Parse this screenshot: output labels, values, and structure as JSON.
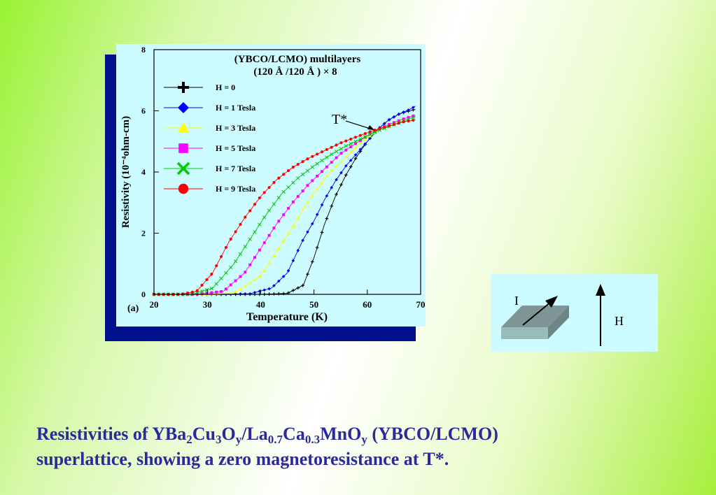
{
  "chart_data": {
    "type": "line",
    "title": "(YBCO/LCMO) multilayers",
    "subtitle": "(120 Å /120 Å ) ×  8",
    "xlabel": "Temperature (K)",
    "ylabel": "Resistivity (10⁻⁴ohm-cm)",
    "panel_label": "(a)",
    "xlim": [
      20,
      70
    ],
    "ylim": [
      0,
      8
    ],
    "xticks": [
      "20",
      "30",
      "40",
      "50",
      "60",
      "70"
    ],
    "yticks": [
      "0",
      "2",
      "4",
      "6",
      "8"
    ],
    "grid": false,
    "legend_position": "top-left",
    "annotation": "T*",
    "series": [
      {
        "name": "H = 0",
        "marker": "plus",
        "color": "#000000",
        "Tc": 52.5,
        "width": 2.2,
        "x": [
          20,
          30,
          40,
          45,
          48,
          50,
          52,
          54,
          56,
          58,
          60,
          62,
          64,
          66,
          68,
          69
        ],
        "y": [
          0,
          0,
          0,
          0.03,
          0.3,
          1.2,
          2.3,
          3.2,
          3.9,
          4.5,
          5.0,
          5.4,
          5.7,
          5.9,
          6.0,
          6.05
        ]
      },
      {
        "name": "H = 1 Tesla",
        "marker": "diamond",
        "color": "#0000ff",
        "Tc": 48.5,
        "width": 3.0,
        "x": [
          20,
          30,
          38,
          42,
          45,
          48,
          50,
          52,
          54,
          56,
          58,
          60,
          62,
          64,
          66,
          68,
          69
        ],
        "y": [
          0,
          0,
          0.02,
          0.2,
          0.7,
          1.8,
          2.4,
          3.1,
          3.7,
          4.2,
          4.6,
          5.0,
          5.4,
          5.7,
          5.9,
          6.05,
          6.15
        ]
      },
      {
        "name": "H = 3 Tesla",
        "marker": "triangle",
        "color": "#ffff00",
        "Tc": 45.5,
        "width": 3.6,
        "x": [
          20,
          30,
          35,
          40,
          43,
          46,
          48,
          50,
          53,
          56,
          59,
          62,
          65,
          68,
          69
        ],
        "y": [
          0,
          0,
          0.05,
          0.6,
          1.4,
          2.2,
          2.8,
          3.3,
          4.0,
          4.5,
          5.0,
          5.35,
          5.6,
          5.8,
          5.9
        ]
      },
      {
        "name": "H = 5 Tesla",
        "marker": "square",
        "color": "#ff00ff",
        "Tc": 43.5,
        "width": 4.0,
        "x": [
          20,
          28,
          33,
          37,
          40,
          43,
          46,
          49,
          52,
          55,
          58,
          61,
          64,
          67,
          69
        ],
        "y": [
          0,
          0,
          0.1,
          0.7,
          1.5,
          2.3,
          3.0,
          3.6,
          4.1,
          4.6,
          4.95,
          5.3,
          5.55,
          5.75,
          5.85
        ]
      },
      {
        "name": "H = 7 Tesla",
        "marker": "x",
        "color": "#00cc00",
        "Tc": 41.5,
        "width": 4.4,
        "x": [
          20,
          27,
          31,
          35,
          38,
          41,
          44,
          47,
          50,
          53,
          56,
          59,
          62,
          65,
          68,
          69
        ],
        "y": [
          0,
          0,
          0.2,
          1.0,
          1.8,
          2.6,
          3.3,
          3.8,
          4.2,
          4.55,
          4.85,
          5.1,
          5.35,
          5.55,
          5.75,
          5.8
        ]
      },
      {
        "name": "H = 9 Tesla",
        "marker": "circle",
        "color": "#ff0000",
        "Tc": 38.5,
        "width": 5.0,
        "x": [
          20,
          25,
          28,
          31,
          34,
          37,
          40,
          43,
          46,
          49,
          52,
          55,
          58,
          61,
          64,
          67,
          69
        ],
        "y": [
          0,
          0,
          0.1,
          0.7,
          1.7,
          2.5,
          3.2,
          3.75,
          4.15,
          4.45,
          4.7,
          4.95,
          5.15,
          5.35,
          5.5,
          5.65,
          5.7
        ]
      }
    ]
  },
  "diagram": {
    "current_label": "I",
    "field_label": "H"
  },
  "caption": {
    "line1_parts": [
      "Resistivities of YBa",
      "2",
      "Cu",
      "3",
      "O",
      "y",
      "/La",
      "0.7",
      "Ca",
      "0.3",
      "MnO",
      "y",
      " (YBCO/LCMO)"
    ],
    "line2": "superlattice, showing a zero magnetoresistance at T*."
  },
  "colors": {
    "panel_background": "#ccfcff",
    "panel_shadow": "#000f8c",
    "caption_text": "#2b2a9c"
  }
}
